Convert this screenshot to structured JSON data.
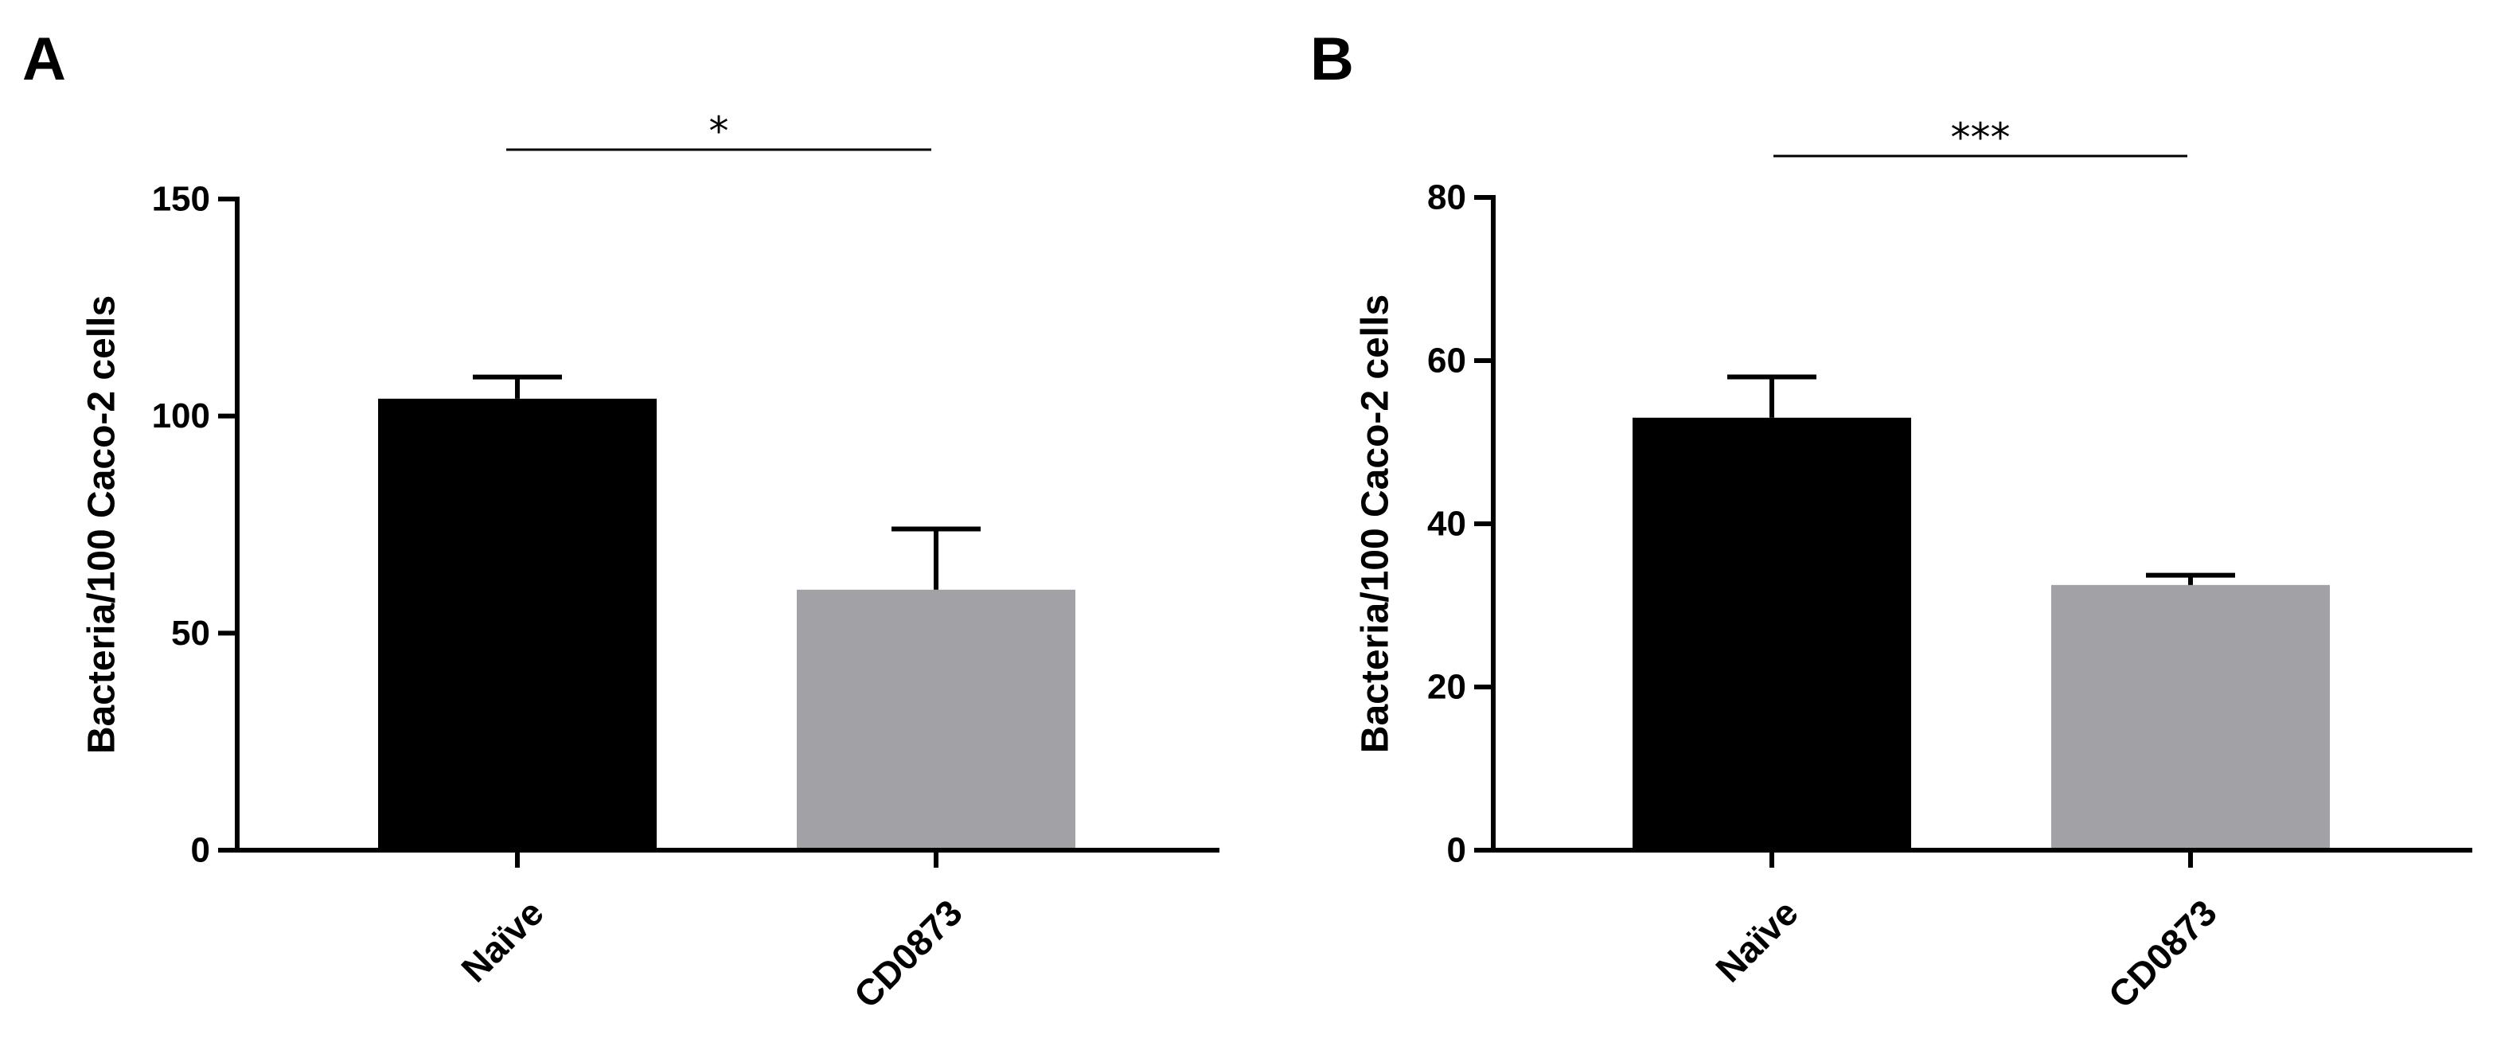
{
  "chart_data": [
    {
      "panel_label": "A",
      "type": "bar",
      "categories": [
        "Naïve",
        "CD0873"
      ],
      "values": [
        104,
        60
      ],
      "errors": [
        5,
        14
      ],
      "bar_colors": [
        "#000000",
        "#a2a2a6"
      ],
      "ylabel": "Bacteria/100 Caco-2 cells",
      "xlabel": "",
      "ylim": [
        0,
        150
      ],
      "yticks": [
        0,
        50,
        100,
        150
      ],
      "significance": "*",
      "grid": false
    },
    {
      "panel_label": "B",
      "type": "bar",
      "categories": [
        "Naïve",
        "CD0873"
      ],
      "values": [
        53,
        32.5
      ],
      "errors": [
        5,
        1.2
      ],
      "bar_colors": [
        "#000000",
        "#a2a2a6"
      ],
      "ylabel": "Bacteria/100 Caco-2 cells",
      "xlabel": "",
      "ylim": [
        0,
        80
      ],
      "yticks": [
        0,
        20,
        40,
        60,
        80
      ],
      "significance": "***",
      "grid": false
    }
  ]
}
